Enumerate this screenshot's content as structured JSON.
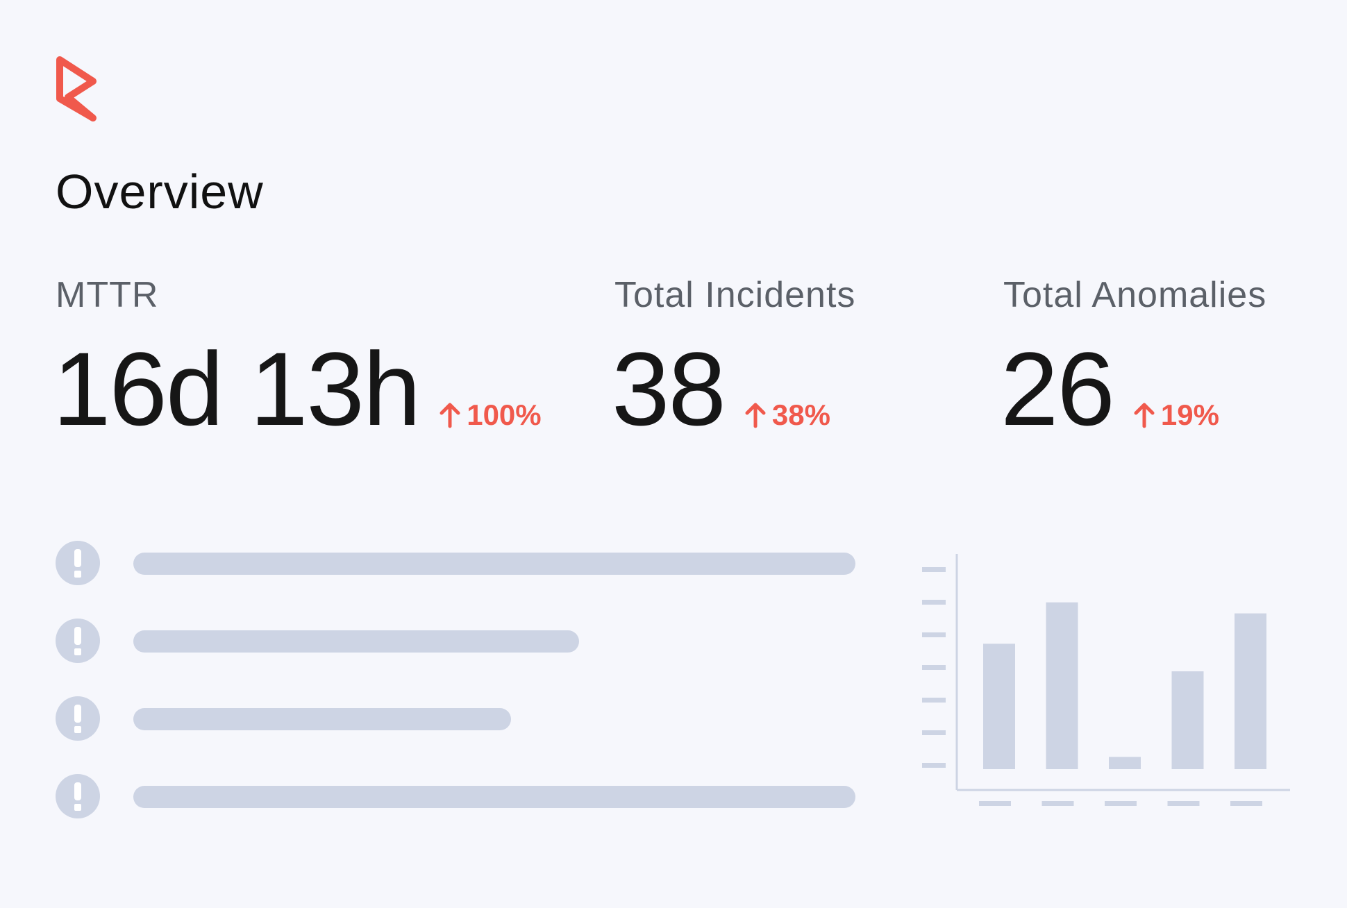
{
  "brand": {
    "logo_icon": "brand-logo-icon",
    "accent_color": "#f0594c"
  },
  "page": {
    "title": "Overview"
  },
  "metrics": [
    {
      "label": "MTTR",
      "value": "16d 13h",
      "delta": "100%",
      "trend": "up",
      "trend_icon": "arrow-up-icon"
    },
    {
      "label": "Total Incidents",
      "value": "38",
      "delta": "38%",
      "trend": "up",
      "trend_icon": "arrow-up-icon"
    },
    {
      "label": "Total Anomalies",
      "value": "26",
      "delta": "19%",
      "trend": "up",
      "trend_icon": "arrow-up-icon"
    }
  ],
  "alerts": {
    "icon": "alert-exclamation-icon",
    "count": 4,
    "placeholder_color": "#cdd4e4"
  },
  "chart_data": {
    "type": "bar",
    "title": "",
    "categories": [
      "",
      "",
      "",
      "",
      ""
    ],
    "values": [
      5.3,
      6.8,
      1.2,
      4.3,
      6.4
    ],
    "ylim": [
      0,
      8
    ],
    "grid": false,
    "legend": "none",
    "bar_color": "#cdd4e4"
  }
}
